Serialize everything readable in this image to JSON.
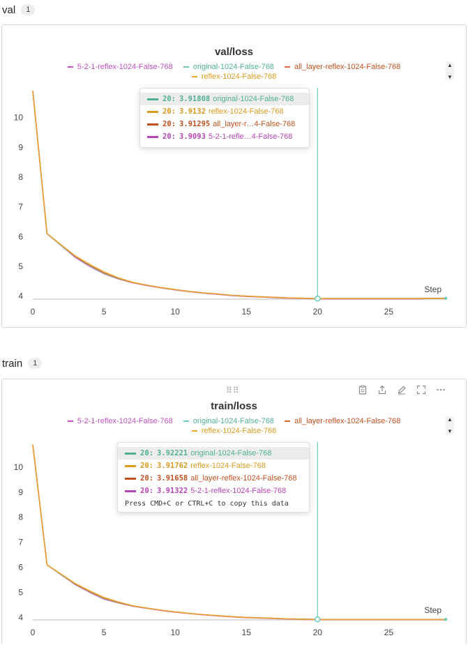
{
  "sections": [
    {
      "title": "val",
      "count": "1"
    },
    {
      "title": "train",
      "count": "1"
    }
  ],
  "legend": [
    {
      "name": "5-2-1-reflex-1024-False-768",
      "color": "#c34fc2"
    },
    {
      "name": "original-1024-False-768",
      "color": "#6cc8b7"
    },
    {
      "name": "all_layer-reflex-1024-False-768",
      "color": "#d16a2f"
    },
    {
      "name": "reflex-1024-False-768",
      "color": "#f0a733"
    }
  ],
  "toolbar_icons": [
    "clipboard-icon",
    "share-icon",
    "edit-icon",
    "fullscreen-icon",
    "more-icon"
  ],
  "chart_data": [
    {
      "type": "line",
      "title": "val/loss",
      "xlabel": "Step",
      "ylabel": "",
      "xlim": [
        0,
        29
      ],
      "ylim": [
        3.9,
        11
      ],
      "xticks": [
        0,
        5,
        10,
        15,
        20,
        25
      ],
      "yticks": [
        4,
        5,
        6,
        7,
        8,
        9,
        10
      ],
      "hover_step": 20,
      "series": [
        {
          "name": "5-2-1-reflex-1024-False-768",
          "color": "#c34fc2",
          "x": [
            0,
            1,
            2,
            3,
            4,
            5,
            6,
            7,
            8,
            9,
            10,
            11,
            12,
            13,
            14,
            15,
            16,
            17,
            18,
            19,
            20,
            21,
            22,
            23,
            24,
            25,
            26,
            27,
            28,
            29
          ],
          "y": [
            10.9,
            6.1,
            5.7,
            5.3,
            5.0,
            4.75,
            4.58,
            4.45,
            4.36,
            4.28,
            4.21,
            4.15,
            4.1,
            4.06,
            4.02,
            3.99,
            3.97,
            3.95,
            3.93,
            3.92,
            3.9093,
            3.91,
            3.91,
            3.91,
            3.91,
            3.91,
            3.91,
            3.91,
            3.92,
            3.92
          ]
        },
        {
          "name": "original-1024-False-768",
          "color": "#6cc8b7",
          "x": [
            0,
            1,
            2,
            3,
            4,
            5,
            6,
            7,
            8,
            9,
            10,
            11,
            12,
            13,
            14,
            15,
            16,
            17,
            18,
            19,
            20,
            21,
            22,
            23,
            24,
            25,
            26,
            27,
            28,
            29
          ],
          "y": [
            10.9,
            6.1,
            5.7,
            5.32,
            5.02,
            4.76,
            4.59,
            4.46,
            4.37,
            4.29,
            4.22,
            4.16,
            4.11,
            4.07,
            4.03,
            4.0,
            3.98,
            3.96,
            3.94,
            3.93,
            3.91808,
            3.92,
            3.92,
            3.92,
            3.92,
            3.92,
            3.92,
            3.92,
            3.93,
            3.93
          ]
        },
        {
          "name": "all_layer-reflex-1024-False-768",
          "color": "#d16a2f",
          "x": [
            0,
            1,
            2,
            3,
            4,
            5,
            6,
            7,
            8,
            9,
            10,
            11,
            12,
            13,
            14,
            15,
            16,
            17,
            18,
            19,
            20,
            21,
            22,
            23,
            24,
            25,
            26,
            27,
            28,
            29
          ],
          "y": [
            10.9,
            6.1,
            5.72,
            5.33,
            5.04,
            4.78,
            4.6,
            4.46,
            4.37,
            4.29,
            4.22,
            4.16,
            4.11,
            4.07,
            4.03,
            4.0,
            3.98,
            3.96,
            3.94,
            3.93,
            3.91295,
            3.92,
            3.92,
            3.92,
            3.92,
            3.92,
            3.92,
            3.92,
            3.92,
            3.92
          ]
        },
        {
          "name": "reflex-1024-False-768",
          "color": "#f0a733",
          "x": [
            0,
            1,
            2,
            3,
            4,
            5,
            6,
            7,
            8,
            9,
            10,
            11,
            12,
            13,
            14,
            15,
            16,
            17,
            18,
            19,
            20,
            21,
            22,
            23,
            24,
            25,
            26,
            27,
            28,
            29
          ],
          "y": [
            10.9,
            6.1,
            5.72,
            5.35,
            5.07,
            4.82,
            4.62,
            4.47,
            4.37,
            4.29,
            4.22,
            4.16,
            4.11,
            4.07,
            4.03,
            4.0,
            3.98,
            3.96,
            3.94,
            3.93,
            3.9132,
            3.92,
            3.92,
            3.92,
            3.92,
            3.92,
            3.92,
            3.92,
            3.92,
            3.92
          ]
        }
      ],
      "tooltip": {
        "rows": [
          {
            "step": "20",
            "value": "3.91808",
            "name": "original-1024-False-768",
            "color": "#4fb096",
            "highlight": true
          },
          {
            "step": "20",
            "value": "3.9132",
            "name": "reflex-1024-False-768",
            "color": "#d99a1e",
            "highlight": false
          },
          {
            "step": "20",
            "value": "3.91295",
            "name": "all_layer-r…4-False-768",
            "color": "#c0501f",
            "highlight": false
          },
          {
            "step": "20",
            "value": "3.9093",
            "name": "5-2-1-refle…4-False-768",
            "color": "#b545b3",
            "highlight": false
          }
        ],
        "footer": ""
      }
    },
    {
      "type": "line",
      "title": "train/loss",
      "xlabel": "Step",
      "ylabel": "",
      "xlim": [
        0,
        29
      ],
      "ylim": [
        3.9,
        11
      ],
      "xticks": [
        0,
        5,
        10,
        15,
        20,
        25
      ],
      "yticks": [
        4,
        5,
        6,
        7,
        8,
        9,
        10
      ],
      "hover_step": 20,
      "series": [
        {
          "name": "5-2-1-reflex-1024-False-768",
          "color": "#c34fc2",
          "x": [
            0,
            1,
            2,
            3,
            4,
            5,
            6,
            7,
            8,
            9,
            10,
            11,
            12,
            13,
            14,
            15,
            16,
            17,
            18,
            19,
            20,
            21,
            22,
            23,
            24,
            25,
            26,
            27,
            28,
            29
          ],
          "y": [
            10.9,
            6.1,
            5.7,
            5.3,
            5.0,
            4.73,
            4.58,
            4.45,
            4.36,
            4.28,
            4.21,
            4.15,
            4.1,
            4.06,
            4.02,
            3.99,
            3.97,
            3.95,
            3.93,
            3.92,
            3.91322,
            3.91,
            3.91,
            3.91,
            3.91,
            3.91,
            3.91,
            3.91,
            3.91,
            3.91
          ]
        },
        {
          "name": "original-1024-False-768",
          "color": "#6cc8b7",
          "x": [
            0,
            1,
            2,
            3,
            4,
            5,
            6,
            7,
            8,
            9,
            10,
            11,
            12,
            13,
            14,
            15,
            16,
            17,
            18,
            19,
            20,
            21,
            22,
            23,
            24,
            25,
            26,
            27,
            28,
            29
          ],
          "y": [
            10.9,
            6.1,
            5.7,
            5.32,
            5.02,
            4.75,
            4.59,
            4.46,
            4.37,
            4.29,
            4.22,
            4.16,
            4.11,
            4.07,
            4.03,
            4.0,
            3.98,
            3.96,
            3.94,
            3.93,
            3.92221,
            3.92,
            3.92,
            3.92,
            3.92,
            3.92,
            3.92,
            3.92,
            3.92,
            3.92
          ]
        },
        {
          "name": "all_layer-reflex-1024-False-768",
          "color": "#d16a2f",
          "x": [
            0,
            1,
            2,
            3,
            4,
            5,
            6,
            7,
            8,
            9,
            10,
            11,
            12,
            13,
            14,
            15,
            16,
            17,
            18,
            19,
            20,
            21,
            22,
            23,
            24,
            25,
            26,
            27,
            28,
            29
          ],
          "y": [
            10.9,
            6.1,
            5.72,
            5.33,
            5.03,
            4.77,
            4.6,
            4.46,
            4.37,
            4.29,
            4.22,
            4.16,
            4.11,
            4.07,
            4.03,
            4.0,
            3.98,
            3.96,
            3.94,
            3.93,
            3.91658,
            3.92,
            3.92,
            3.92,
            3.92,
            3.92,
            3.92,
            3.92,
            3.92,
            3.92
          ]
        },
        {
          "name": "reflex-1024-False-768",
          "color": "#f0a733",
          "x": [
            0,
            1,
            2,
            3,
            4,
            5,
            6,
            7,
            8,
            9,
            10,
            11,
            12,
            13,
            14,
            15,
            16,
            17,
            18,
            19,
            20,
            21,
            22,
            23,
            24,
            25,
            26,
            27,
            28,
            29
          ],
          "y": [
            10.9,
            6.1,
            5.72,
            5.35,
            5.06,
            4.8,
            4.62,
            4.47,
            4.37,
            4.29,
            4.22,
            4.16,
            4.11,
            4.07,
            4.03,
            4.0,
            3.98,
            3.96,
            3.94,
            3.93,
            3.91762,
            3.92,
            3.92,
            3.92,
            3.92,
            3.92,
            3.92,
            3.92,
            3.92,
            3.92
          ]
        }
      ],
      "tooltip": {
        "rows": [
          {
            "step": "20",
            "value": "3.92221",
            "name": "original-1024-False-768",
            "color": "#4fb096",
            "highlight": true
          },
          {
            "step": "20",
            "value": "3.91762",
            "name": "reflex-1024-False-768",
            "color": "#d99a1e",
            "highlight": false
          },
          {
            "step": "20",
            "value": "3.91658",
            "name": "all_layer-reflex-1024-False-768",
            "color": "#c0501f",
            "highlight": false
          },
          {
            "step": "20",
            "value": "3.91322",
            "name": "5-2-1-reflex-1024-False-768",
            "color": "#b545b3",
            "highlight": false
          }
        ],
        "footer": "Press CMD+C or CTRL+C to copy this data"
      }
    }
  ]
}
